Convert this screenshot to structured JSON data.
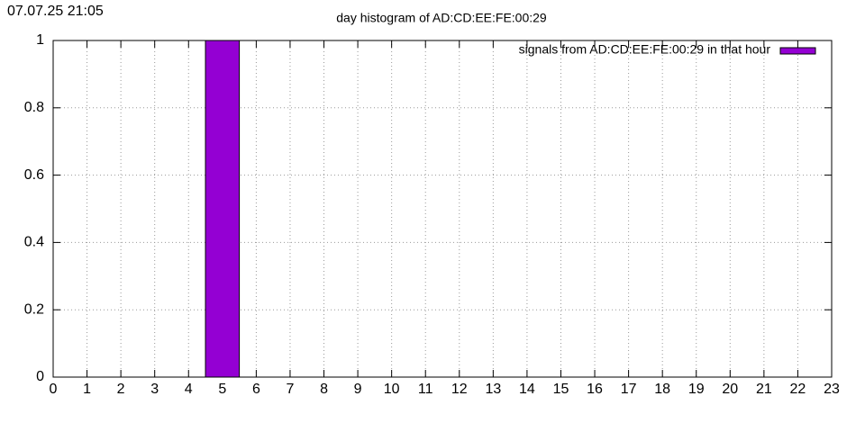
{
  "chart_data": {
    "type": "bar",
    "title": "day histogram of AD:CD:EE:FE:00:29",
    "timestamp": "07.07.25 21:05",
    "x": [
      0,
      1,
      2,
      3,
      4,
      5,
      6,
      7,
      8,
      9,
      10,
      11,
      12,
      13,
      14,
      15,
      16,
      17,
      18,
      19,
      20,
      21,
      22,
      23
    ],
    "series": [
      {
        "name": "signals from AD:CD:EE:FE:00:29 in that hour",
        "color": "#9400d3",
        "values": [
          0,
          0,
          0,
          0,
          0,
          1,
          0,
          0,
          0,
          0,
          0,
          0,
          0,
          0,
          0,
          0,
          0,
          0,
          0,
          0,
          0,
          0,
          0,
          0
        ]
      }
    ],
    "xlim": [
      0,
      23
    ],
    "xticks": [
      0,
      1,
      2,
      3,
      4,
      5,
      6,
      7,
      8,
      9,
      10,
      11,
      12,
      13,
      14,
      15,
      16,
      17,
      18,
      19,
      20,
      21,
      22,
      23
    ],
    "ylim": [
      0,
      1
    ],
    "yticks": [
      0,
      0.2,
      0.4,
      0.6,
      0.8,
      1
    ],
    "grid": true,
    "legend": "upper right"
  }
}
